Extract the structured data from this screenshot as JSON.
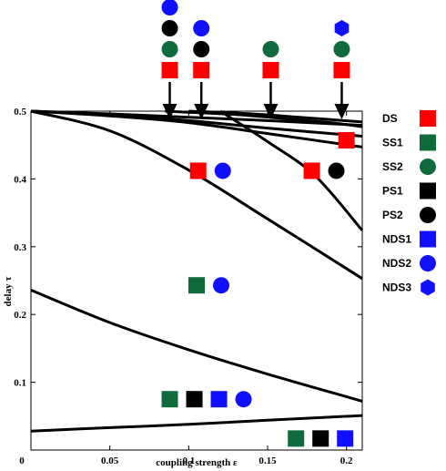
{
  "chart_data": {
    "type": "line",
    "xlabel": "coupling strength ε",
    "ylabel": "delay τ",
    "xlim": [
      0,
      0.21
    ],
    "ylim": [
      0,
      0.5
    ],
    "x_ticks": [
      "0",
      "0.05",
      "0.1",
      "0.15",
      "0.2"
    ],
    "x_tick_values": [
      0,
      0.05,
      0.1,
      0.15,
      0.2
    ],
    "y_ticks": [
      "0.1",
      "0.2",
      "0.3",
      "0.4",
      "0.5"
    ],
    "y_tick_values": [
      0.1,
      0.2,
      0.3,
      0.4,
      0.5
    ],
    "grid": false,
    "legend_position": "right",
    "colors": {
      "red": "#ff0000",
      "green": "#0f6b3c",
      "black": "#000000",
      "blue": "#1010ff"
    },
    "legend": [
      {
        "label": "DS",
        "shape": "square",
        "color": "red"
      },
      {
        "label": "SS1",
        "shape": "square",
        "color": "green"
      },
      {
        "label": "SS2",
        "shape": "circle",
        "color": "green"
      },
      {
        "label": "PS1",
        "shape": "square",
        "color": "black"
      },
      {
        "label": "PS2",
        "shape": "circle",
        "color": "black"
      },
      {
        "label": "NDS1",
        "shape": "square",
        "color": "blue"
      },
      {
        "label": "NDS2",
        "shape": "circle",
        "color": "blue"
      },
      {
        "label": "NDS3",
        "shape": "hexagon",
        "color": "blue"
      }
    ],
    "curves": [
      {
        "points": [
          [
            0,
            0.5
          ],
          [
            0.05,
            0.496
          ],
          [
            0.1,
            0.491
          ],
          [
            0.15,
            0.486
          ],
          [
            0.21,
            0.479
          ]
        ]
      },
      {
        "points": [
          [
            0,
            0.5
          ],
          [
            0.05,
            0.494
          ],
          [
            0.1,
            0.486
          ],
          [
            0.15,
            0.475
          ],
          [
            0.21,
            0.463
          ]
        ]
      },
      {
        "points": [
          [
            0,
            0.5
          ],
          [
            0.05,
            0.493
          ],
          [
            0.1,
            0.483
          ],
          [
            0.15,
            0.467
          ],
          [
            0.21,
            0.447
          ]
        ]
      },
      {
        "points": [
          [
            0.085,
            0.5
          ],
          [
            0.13,
            0.495
          ],
          [
            0.16,
            0.489
          ],
          [
            0.19,
            0.483
          ],
          [
            0.21,
            0.477
          ]
        ]
      },
      {
        "points": [
          [
            0.1,
            0.5
          ],
          [
            0.14,
            0.496
          ],
          [
            0.17,
            0.491
          ],
          [
            0.21,
            0.484
          ]
        ]
      },
      {
        "points": [
          [
            0,
            0.5
          ],
          [
            0.05,
            0.471
          ],
          [
            0.1,
            0.413
          ],
          [
            0.15,
            0.341
          ],
          [
            0.21,
            0.253
          ]
        ]
      },
      {
        "points": [
          [
            0.12,
            0.5
          ],
          [
            0.15,
            0.455
          ],
          [
            0.18,
            0.405
          ],
          [
            0.21,
            0.324
          ]
        ]
      },
      {
        "points": [
          [
            0,
            0.236
          ],
          [
            0.05,
            0.188
          ],
          [
            0.1,
            0.148
          ],
          [
            0.15,
            0.112
          ],
          [
            0.21,
            0.072
          ]
        ]
      },
      {
        "points": [
          [
            0,
            0.028
          ],
          [
            0.05,
            0.033
          ],
          [
            0.1,
            0.038
          ],
          [
            0.15,
            0.044
          ],
          [
            0.21,
            0.051
          ]
        ]
      }
    ],
    "arrows_x": [
      0.088,
      0.108,
      0.152,
      0.197
    ],
    "region_markers": [
      {
        "x": 0.106,
        "y": 0.412,
        "marks": [
          [
            "square",
            "red"
          ],
          [
            "circle",
            "blue"
          ]
        ]
      },
      {
        "x": 0.178,
        "y": 0.412,
        "marks": [
          [
            "square",
            "red"
          ],
          [
            "circle",
            "black"
          ]
        ]
      },
      {
        "x": 0.2,
        "y": 0.457,
        "marks": [
          [
            "square",
            "red"
          ]
        ]
      },
      {
        "x": 0.105,
        "y": 0.243,
        "marks": [
          [
            "square",
            "green"
          ],
          [
            "circle",
            "blue"
          ]
        ]
      },
      {
        "x": 0.088,
        "y": 0.075,
        "marks": [
          [
            "square",
            "green"
          ],
          [
            "square",
            "black"
          ],
          [
            "square",
            "blue"
          ],
          [
            "circle",
            "blue"
          ]
        ]
      },
      {
        "x": 0.168,
        "y": 0.017,
        "marks": [
          [
            "square",
            "green"
          ],
          [
            "square",
            "black"
          ],
          [
            "square",
            "blue"
          ]
        ]
      }
    ],
    "top_stacks": [
      {
        "x": 0.088,
        "marks": [
          [
            "square",
            "red"
          ],
          [
            "circle",
            "green"
          ],
          [
            "circle",
            "black"
          ],
          [
            "circle",
            "blue"
          ]
        ]
      },
      {
        "x": 0.108,
        "marks": [
          [
            "square",
            "red"
          ],
          [
            "circle",
            "black"
          ],
          [
            "circle",
            "blue"
          ]
        ]
      },
      {
        "x": 0.152,
        "marks": [
          [
            "square",
            "red"
          ],
          [
            "circle",
            "green"
          ]
        ]
      },
      {
        "x": 0.197,
        "marks": [
          [
            "square",
            "red"
          ],
          [
            "circle",
            "green"
          ],
          [
            "hexagon",
            "blue"
          ]
        ]
      }
    ]
  }
}
